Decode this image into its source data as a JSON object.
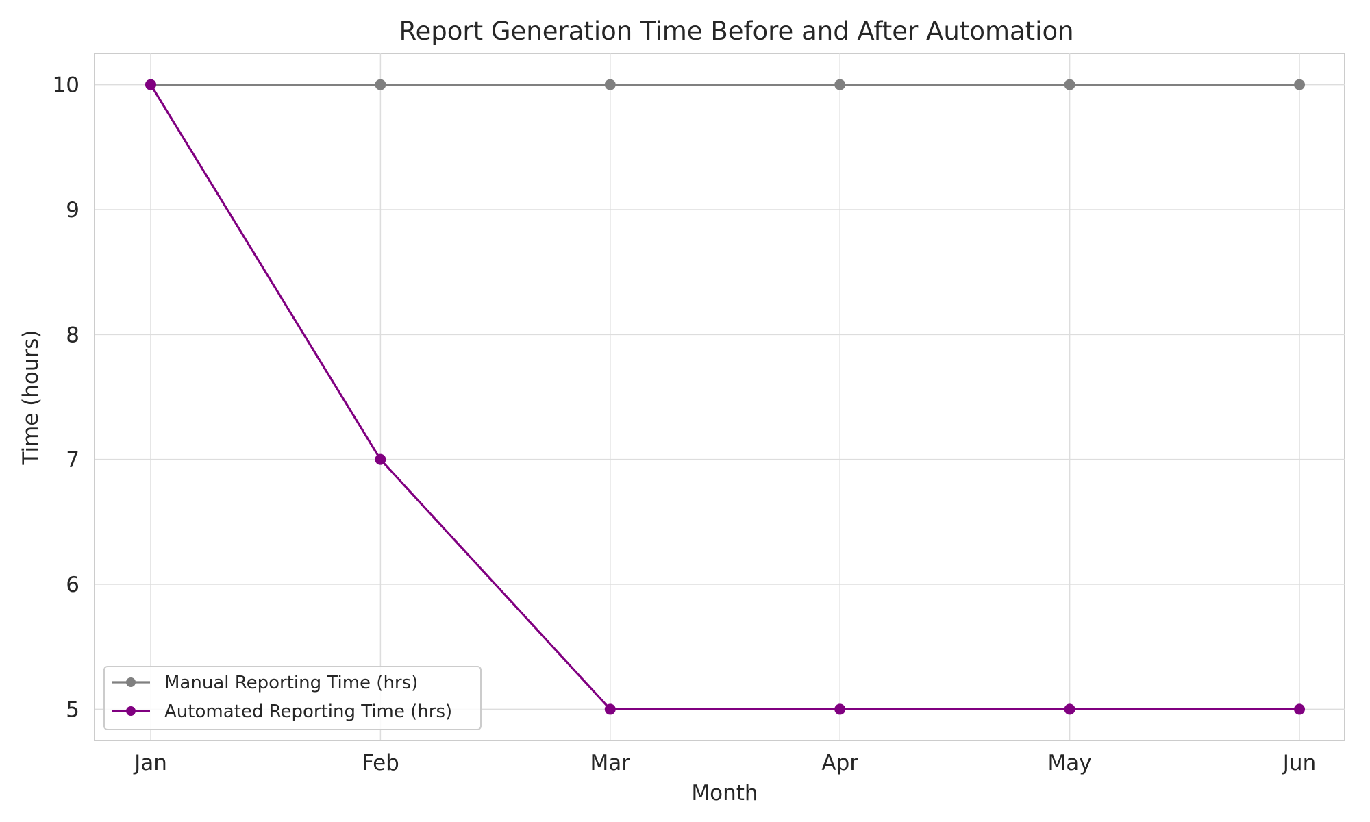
{
  "chart_data": {
    "type": "line",
    "title": "Report Generation Time Before and After Automation",
    "xlabel": "Month",
    "ylabel": "Time (hours)",
    "categories": [
      "Jan",
      "Feb",
      "Mar",
      "Apr",
      "May",
      "Jun"
    ],
    "yticks": [
      "5",
      "6",
      "7",
      "8",
      "9",
      "10"
    ],
    "ylim": [
      4.75,
      10.25
    ],
    "grid": true,
    "legend_position": "lower-left",
    "series": [
      {
        "name": "Manual Reporting Time (hrs)",
        "values": [
          10,
          10,
          10,
          10,
          10,
          10
        ],
        "color": "#808080"
      },
      {
        "name": "Automated Reporting Time (hrs)",
        "values": [
          10,
          7,
          5,
          5,
          5,
          5
        ],
        "color": "#800080"
      }
    ]
  }
}
